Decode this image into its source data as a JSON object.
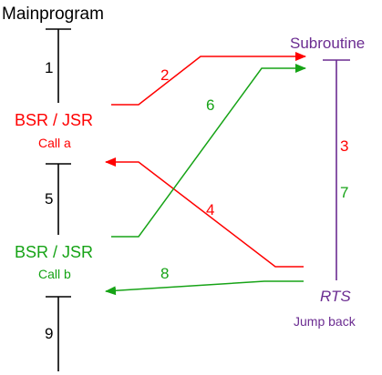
{
  "colors": {
    "black": "#000000",
    "red": "#ff0000",
    "green": "#16a316",
    "purple": "#6b2c91"
  },
  "main_program": {
    "title": "Mainprogram",
    "segment_labels": [
      "1",
      "5",
      "9"
    ],
    "call_a": {
      "instruction": "BSR / JSR",
      "label": "Call a"
    },
    "call_b": {
      "instruction": "BSR / JSR",
      "label": "Call b"
    }
  },
  "subroutine": {
    "title": "Subroutine",
    "return_instruction": "RTS",
    "return_label": "Jump back"
  },
  "red_labels": [
    "2",
    "4",
    "3"
  ],
  "green_labels": [
    "6",
    "8",
    "7"
  ]
}
